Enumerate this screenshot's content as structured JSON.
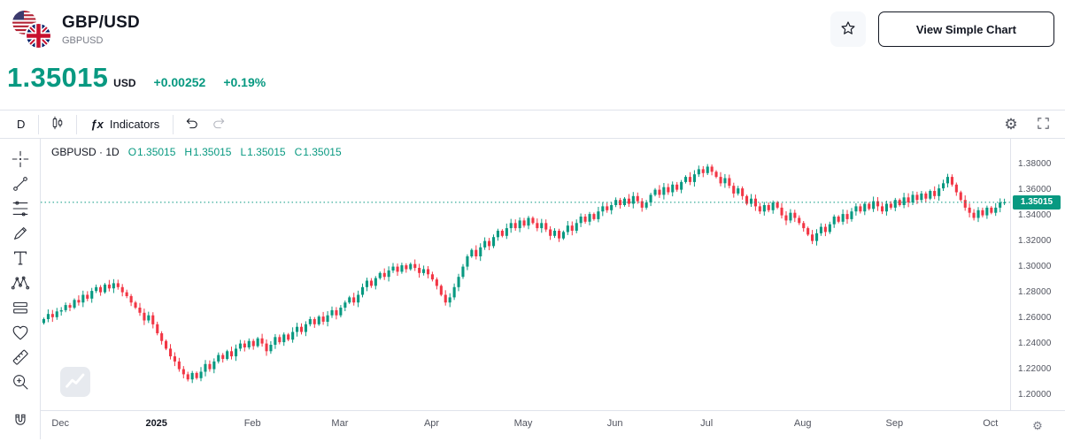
{
  "colors": {
    "accent_up": "#089981",
    "accent_down": "#f23645",
    "text_primary": "#131722",
    "text_secondary": "#787b86",
    "border": "#e0e3eb",
    "badge_bg": "#089981"
  },
  "header": {
    "symbol_title": "GBP/USD",
    "symbol_code": "GBPUSD",
    "simple_chart_label": "View Simple Chart",
    "favorite_icon": "star-outline"
  },
  "quote": {
    "price": "1.35015",
    "currency_label": "USD",
    "change_abs": "+0.00252",
    "change_pct": "+0.19%"
  },
  "toolbar": {
    "interval": "D",
    "fx": "ƒx",
    "indicators": "Indicators",
    "icons": [
      "candlestick-style",
      "undo",
      "redo",
      "settings-gear",
      "fullscreen"
    ]
  },
  "sidebar_tools": [
    "crosshair",
    "trend-line",
    "fib-retracement",
    "brush",
    "text",
    "xabcd-pattern",
    "long-short-position",
    "emoji",
    "measure-ruler",
    "zoom-in",
    "magnet"
  ],
  "legend": {
    "series_title": "GBPUSD · 1D",
    "o_label": "O",
    "o_value": "1.35015",
    "h_label": "H",
    "h_value": "1.35015",
    "l_label": "L",
    "l_value": "1.35015",
    "c_label": "C",
    "c_value": "1.35015"
  },
  "price_badge": "1.35015",
  "axis_gear_glyph": "⚙",
  "toolbar_gear_glyph": "⚙",
  "chart_data": {
    "type": "candlestick",
    "symbol": "GBPUSD",
    "interval": "1D",
    "title": "GBPUSD · 1D",
    "current_price": 1.35015,
    "open_start": 1.256,
    "closes": [
      1.259,
      1.263,
      1.2605,
      1.265,
      1.266,
      1.27,
      1.268,
      1.274,
      1.272,
      1.278,
      1.275,
      1.281,
      1.284,
      1.28,
      1.286,
      1.283,
      1.287,
      1.284,
      1.28,
      1.277,
      1.272,
      1.268,
      1.264,
      1.258,
      1.262,
      1.255,
      1.248,
      1.242,
      1.236,
      1.23,
      1.226,
      1.22,
      1.216,
      1.212,
      1.217,
      1.213,
      1.218,
      1.224,
      1.22,
      1.226,
      1.231,
      1.228,
      1.234,
      1.23,
      1.236,
      1.24,
      1.237,
      1.242,
      1.238,
      1.244,
      1.24,
      1.234,
      1.239,
      1.245,
      1.241,
      1.247,
      1.243,
      1.249,
      1.253,
      1.249,
      1.255,
      1.259,
      1.255,
      1.261,
      1.257,
      1.262,
      1.266,
      1.262,
      1.268,
      1.272,
      1.276,
      1.272,
      1.278,
      1.284,
      1.289,
      1.285,
      1.291,
      1.295,
      1.292,
      1.297,
      1.3,
      1.296,
      1.301,
      1.298,
      1.302,
      1.299,
      1.295,
      1.298,
      1.294,
      1.29,
      1.285,
      1.278,
      1.272,
      1.276,
      1.284,
      1.292,
      1.3,
      1.308,
      1.313,
      1.308,
      1.315,
      1.32,
      1.316,
      1.323,
      1.328,
      1.324,
      1.33,
      1.334,
      1.33,
      1.336,
      1.332,
      1.338,
      1.334,
      1.33,
      1.334,
      1.329,
      1.324,
      1.328,
      1.322,
      1.327,
      1.332,
      1.328,
      1.334,
      1.339,
      1.335,
      1.341,
      1.337,
      1.343,
      1.347,
      1.344,
      1.348,
      1.352,
      1.348,
      1.353,
      1.349,
      1.355,
      1.351,
      1.346,
      1.35,
      1.356,
      1.36,
      1.356,
      1.362,
      1.358,
      1.364,
      1.36,
      1.366,
      1.37,
      1.366,
      1.372,
      1.376,
      1.373,
      1.378,
      1.374,
      1.37,
      1.365,
      1.369,
      1.363,
      1.357,
      1.361,
      1.355,
      1.349,
      1.353,
      1.347,
      1.343,
      1.348,
      1.344,
      1.35,
      1.346,
      1.34,
      1.336,
      1.342,
      1.338,
      1.334,
      1.33,
      1.325,
      1.32,
      1.326,
      1.331,
      1.327,
      1.333,
      1.339,
      1.335,
      1.341,
      1.337,
      1.343,
      1.347,
      1.343,
      1.349,
      1.345,
      1.351,
      1.347,
      1.343,
      1.349,
      1.346,
      1.352,
      1.348,
      1.354,
      1.35,
      1.356,
      1.352,
      1.357,
      1.353,
      1.359,
      1.355,
      1.361,
      1.365,
      1.37,
      1.364,
      1.358,
      1.352,
      1.346,
      1.342,
      1.338,
      1.344,
      1.34,
      1.346,
      1.342,
      1.346,
      1.35,
      1.35015
    ],
    "y_min": 1.188,
    "y_max": 1.3997,
    "y_ticks": [
      {
        "label": "1.38000",
        "value": 1.38
      },
      {
        "label": "1.36000",
        "value": 1.36
      },
      {
        "label": "1.34000",
        "value": 1.34
      },
      {
        "label": "1.32000",
        "value": 1.32
      },
      {
        "label": "1.30000",
        "value": 1.3
      },
      {
        "label": "1.28000",
        "value": 1.28
      },
      {
        "label": "1.26000",
        "value": 1.26
      },
      {
        "label": "1.24000",
        "value": 1.24
      },
      {
        "label": "1.22000",
        "value": 1.22
      },
      {
        "label": "1.20000",
        "value": 1.2
      }
    ],
    "x_ticks": [
      {
        "label": "Dec",
        "index": 4
      },
      {
        "label": "2025",
        "index": 26,
        "emphasis": true
      },
      {
        "label": "Feb",
        "index": 48
      },
      {
        "label": "Mar",
        "index": 68
      },
      {
        "label": "Apr",
        "index": 89
      },
      {
        "label": "May",
        "index": 110
      },
      {
        "label": "Jun",
        "index": 131
      },
      {
        "label": "Jul",
        "index": 152
      },
      {
        "label": "Aug",
        "index": 174
      },
      {
        "label": "Sep",
        "index": 195
      },
      {
        "label": "Oct",
        "index": 217
      }
    ],
    "colors": {
      "up": "#089981",
      "down": "#f23645"
    },
    "wick_base": 0.0012,
    "wick_step": 0.0004,
    "price_line_value": 1.35015,
    "legend_ohlc": {
      "o": 1.35015,
      "h": 1.35015,
      "l": 1.35015,
      "c": 1.35015
    },
    "grid": false,
    "legend_position": "top-left"
  }
}
